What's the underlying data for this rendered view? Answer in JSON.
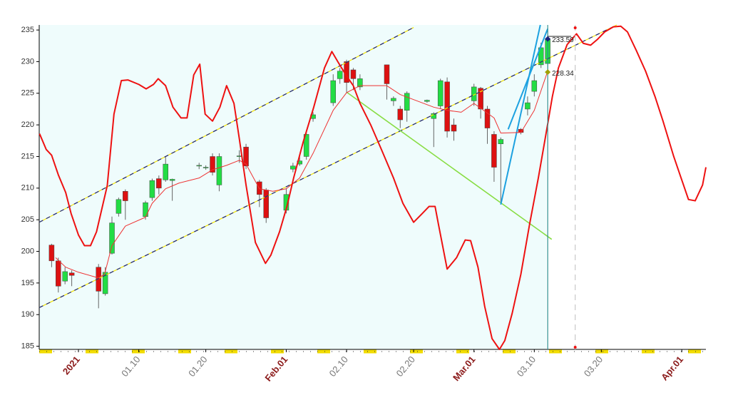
{
  "chart_data": {
    "type": "candlestick",
    "xlim": [
      -5.85,
      93.6
    ],
    "ylim": [
      184.5,
      235.8
    ],
    "xticks": [
      {
        "value": 0,
        "label": "2021"
      },
      {
        "value": 9,
        "label": "01.10"
      },
      {
        "value": 19,
        "label": "01.20"
      },
      {
        "value": 31,
        "label": "Feb.01"
      },
      {
        "value": 40,
        "label": "02.10"
      },
      {
        "value": 50,
        "label": "02.20"
      },
      {
        "value": 59,
        "label": "Mar.01"
      },
      {
        "value": 68,
        "label": "03.10"
      },
      {
        "value": 78,
        "label": "03.20"
      },
      {
        "value": 90,
        "label": "Apr.01"
      }
    ],
    "yticks": [
      185,
      190,
      195,
      200,
      205,
      210,
      215,
      220,
      225,
      230,
      235
    ],
    "up_color": "#22dd44",
    "down_color": "#dd1111",
    "candles": {
      "x": [
        -4,
        -3,
        -2,
        -1,
        3,
        4,
        5,
        6,
        7,
        10,
        11,
        12,
        13,
        14,
        18,
        19,
        20,
        21,
        24,
        25,
        27,
        28,
        31,
        32,
        33,
        34,
        35,
        38,
        39,
        40,
        41,
        42,
        46,
        47,
        48,
        49,
        52,
        53,
        54,
        55,
        56,
        59,
        60,
        61,
        62,
        63,
        66,
        67,
        68,
        69,
        70
      ],
      "open": [
        201,
        198.5,
        195.3,
        196.6,
        197.5,
        193.3,
        199.7,
        206,
        209.5,
        205.5,
        208.5,
        211.5,
        211.3,
        211.2,
        213.5,
        213.2,
        215,
        210.5,
        215,
        216.5,
        211,
        209.7,
        206.5,
        213,
        213.8,
        215,
        221,
        223.5,
        227.3,
        230,
        228.7,
        226,
        229.5,
        223.8,
        222.5,
        222.3,
        223.7,
        221,
        223,
        226.8,
        220,
        223.8,
        225.8,
        222.5,
        218.5,
        217,
        219.3,
        222.5,
        225.3,
        229.5,
        229.7
      ],
      "high": [
        201.2,
        199,
        197.5,
        197,
        198,
        197.5,
        205.5,
        208.5,
        209.8,
        208,
        211.5,
        212,
        215,
        211.5,
        214,
        213.6,
        215.5,
        215.5,
        216,
        217,
        211.3,
        210,
        210,
        214,
        215,
        219,
        222,
        228,
        229,
        230.3,
        229,
        228,
        229.5,
        224.5,
        223,
        225.3,
        224,
        222,
        227.3,
        227.5,
        221,
        226.5,
        226,
        223,
        219,
        218,
        219.5,
        224.5,
        228,
        233,
        235
      ],
      "low": [
        197.5,
        193.5,
        194.8,
        194.5,
        191,
        193,
        199.5,
        205.5,
        205,
        205,
        208,
        209,
        211,
        208,
        213,
        212.9,
        212,
        209.5,
        214,
        213,
        207,
        204.5,
        206,
        212.5,
        213.5,
        214.5,
        220.5,
        223,
        226.5,
        225,
        225.5,
        225.5,
        224,
        223,
        219.5,
        220.5,
        223.5,
        216.5,
        222.5,
        218,
        217.5,
        223,
        221,
        217,
        211,
        207.5,
        218.5,
        221.5,
        224.5,
        229,
        228.3
      ],
      "close": [
        198.5,
        194.5,
        196.8,
        196.2,
        193.7,
        196.7,
        204.5,
        208.2,
        208,
        207.7,
        211.2,
        210,
        213.8,
        211.4,
        213.6,
        213.3,
        212.5,
        215,
        215.1,
        213.5,
        209,
        205.3,
        209,
        213.5,
        214.3,
        218.5,
        221.6,
        227,
        228.5,
        226.7,
        227.3,
        227.3,
        226.5,
        224.2,
        220.8,
        225,
        223.9,
        221.8,
        227,
        219,
        219,
        226,
        222.5,
        219.5,
        213.3,
        217.7,
        218.8,
        223.5,
        227,
        232.2,
        233.6
      ]
    },
    "overlays": [
      {
        "color": "#1a237e",
        "dash_color": "#f5e400",
        "width": 1.2,
        "x": [
          -5.85,
          50
        ],
        "values": [
          204.6,
          235.4
        ]
      },
      {
        "color": "#1a237e",
        "dash_color": "#f5e400",
        "width": 1.2,
        "x": [
          -5.85,
          80.3
        ],
        "values": [
          191.1,
          235.8
        ]
      },
      {
        "color": "#88dd44",
        "width": 1.6,
        "x": [
          40.1,
          70.6
        ],
        "values": [
          225.1,
          201.9
        ]
      },
      {
        "color": "#1da1e0",
        "width": 2,
        "x": [
          63.0,
          68.9
        ],
        "values": [
          207.4,
          235.8
        ]
      },
      {
        "color": "#1da1e0",
        "width": 2,
        "x": [
          64.1,
          70.0
        ],
        "values": [
          219.3,
          235.2
        ]
      },
      {
        "color": "#222222",
        "width": 1,
        "x": [
          70,
          73.5
        ],
        "values": [
          234,
          234
        ]
      },
      {
        "color": "#ee3333",
        "width": 1,
        "x": [
          -3.4,
          -1.9,
          0,
          3,
          3.9,
          5,
          7,
          10,
          11,
          13,
          15,
          18,
          20,
          22.1,
          24,
          25,
          27,
          29,
          31,
          33,
          35,
          38,
          40,
          42,
          46,
          48,
          50,
          53,
          55,
          57.1,
          59,
          62,
          63,
          66,
          68,
          70
        ],
        "values": [
          199,
          197.5,
          196.7,
          195.8,
          196.4,
          200.9,
          204,
          205.4,
          207.6,
          209.9,
          210.8,
          211.6,
          212.9,
          213.6,
          214.4,
          213.8,
          209.9,
          209.5,
          209.9,
          211.6,
          215.5,
          222.3,
          225.1,
          226.2,
          226.2,
          224.8,
          224,
          222.8,
          222.3,
          222,
          223.4,
          221.1,
          218.7,
          218.8,
          222.3,
          228.5
        ]
      },
      {
        "color": "#ee1111",
        "width": 2,
        "x": [
          -5.8,
          -4.8,
          -4.0,
          -3.0,
          -1.9,
          -1.1,
          0,
          0.9,
          1.8,
          2.7,
          4.3,
          5.3,
          6.4,
          7.4,
          9.0,
          10.1,
          11.2,
          11.9,
          13.0,
          14.1,
          15.3,
          16.2,
          17.2,
          18.1,
          18.9,
          20.0,
          21.1,
          22.1,
          23.2,
          24.0,
          25.0,
          26.4,
          27.9,
          28.7,
          30.0,
          31.1,
          32.1,
          33.5,
          35.1,
          36.7,
          37.8,
          38.8,
          39.9,
          41.0,
          42.0,
          43.6,
          45.2,
          47.0,
          48.4,
          50.0,
          51.3,
          52.3,
          53.2,
          53.7,
          55.0,
          56.4,
          57.7,
          58.5,
          59.6,
          60.6,
          61.7,
          62.8,
          63.6,
          64.7,
          66.0,
          67.3,
          68.6,
          69.7,
          70.7,
          71.6,
          72.9,
          74.3,
          75.3,
          76.4,
          77.4,
          78.5,
          79.8,
          80.9,
          81.9,
          83.2,
          84.6,
          86.0,
          87.2,
          88.8,
          89.9,
          91.0,
          92.0,
          93.1,
          93.6
        ],
        "values": [
          218.6,
          216.1,
          215.2,
          212.1,
          209.3,
          206,
          202.6,
          200.9,
          200.9,
          203.1,
          210.4,
          221.7,
          227,
          227.1,
          226.4,
          225.7,
          226.4,
          227.3,
          226.2,
          222.8,
          221.1,
          221.1,
          227.9,
          229.6,
          221.7,
          220.6,
          222.8,
          226.2,
          223.4,
          217.8,
          210.5,
          201.4,
          198.1,
          199.4,
          203.1,
          207.1,
          211.6,
          217.2,
          222.8,
          229,
          231.6,
          229.8,
          227.9,
          226.2,
          223.4,
          220,
          216.1,
          211.6,
          207.6,
          204.6,
          206,
          207.1,
          207.1,
          204.3,
          197.2,
          199,
          201.8,
          201.7,
          197.5,
          191.3,
          186.2,
          184.5,
          185.9,
          190.2,
          196.4,
          204.3,
          211.6,
          218.3,
          224.5,
          229,
          232.7,
          234.4,
          232.9,
          232.6,
          233.5,
          234.7,
          235.5,
          235.6,
          234.7,
          231.8,
          228.5,
          224.5,
          220.6,
          215,
          211.6,
          208.2,
          208,
          210.5,
          213.3
        ]
      }
    ],
    "verticals": [
      {
        "x": 70,
        "color": "#2a8f8f"
      },
      {
        "x": 74.1,
        "color": "#c8c8c8",
        "dashed": true,
        "dot_color": "#ee1111"
      }
    ],
    "annotations": [
      {
        "x": 70,
        "value": 233.59,
        "color": "#1a237e"
      },
      {
        "x": 70,
        "value": 228.34,
        "color": "#a0a000"
      }
    ]
  }
}
